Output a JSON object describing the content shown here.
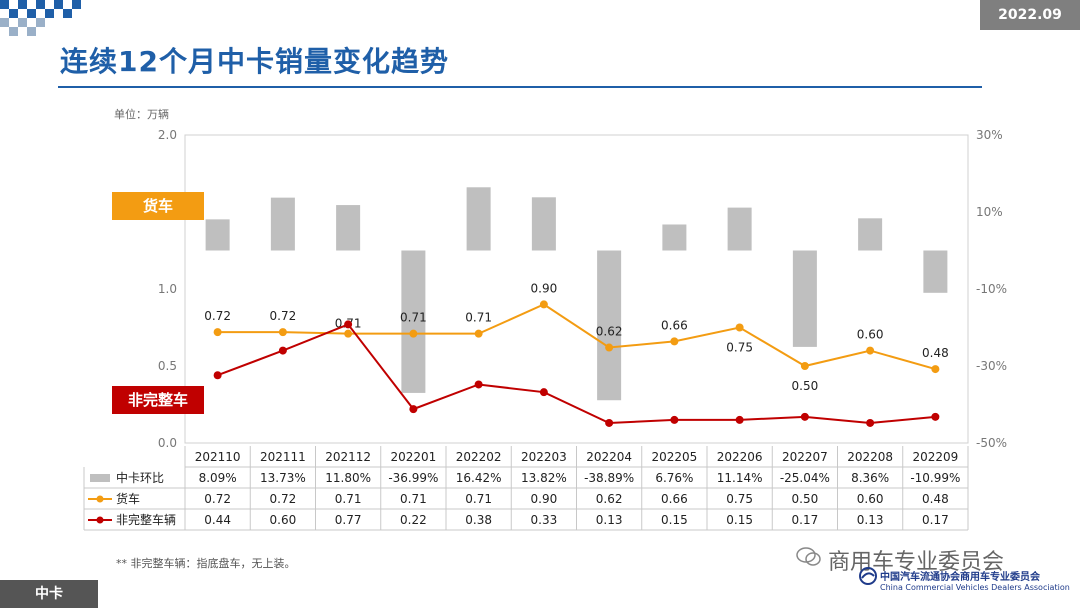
{
  "header": {
    "date": "2022.09",
    "title": "连续12个月中卡销量变化趋势"
  },
  "unit": "单位：万辆",
  "tags": {
    "truck": "货车",
    "chassis": "非完整车"
  },
  "footnote": "** 非完整车辆：指底盘车，无上装。",
  "footer": {
    "section": "中卡",
    "association": "商用车专业委员会",
    "association_cn": "中国汽车流通协会商用车专业委员会",
    "association_en": "China Commercial Vehicles Dealers Association"
  },
  "colors": {
    "bar": "#bfbfbf",
    "truck": "#f39c12",
    "chassis": "#c00000",
    "title": "#1f5fa8"
  },
  "chart_data": {
    "type": "bar+line",
    "categories": [
      "202110",
      "202111",
      "202112",
      "202201",
      "202202",
      "202203",
      "202204",
      "202205",
      "202206",
      "202207",
      "202208",
      "202209"
    ],
    "y_left": {
      "ticks": [
        "0.0",
        "0.5",
        "1.0",
        "2.0"
      ],
      "range": [
        0,
        2.0
      ]
    },
    "y_right": {
      "ticks": [
        "30%",
        "10%",
        "-10%",
        "-30%",
        "-50%"
      ],
      "range": [
        -0.5,
        0.3
      ]
    },
    "series": [
      {
        "name": "中卡环比",
        "type": "bar",
        "axis": "right",
        "values": [
          8.09,
          13.73,
          11.8,
          -36.99,
          16.42,
          13.82,
          -38.89,
          6.76,
          11.14,
          -25.04,
          8.36,
          -10.99
        ],
        "labels": [
          "8.09%",
          "13.73%",
          "11.80%",
          "-36.99%",
          "16.42%",
          "13.82%",
          "-38.89%",
          "6.76%",
          "11.14%",
          "-25.04%",
          "8.36%",
          "-10.99%"
        ]
      },
      {
        "name": "货车",
        "type": "line",
        "axis": "left",
        "values": [
          0.72,
          0.72,
          0.71,
          0.71,
          0.71,
          0.9,
          0.62,
          0.66,
          0.75,
          0.5,
          0.6,
          0.48
        ],
        "labels": [
          "0.72",
          "0.72",
          "0.71",
          "0.71",
          "0.71",
          "0.90",
          "0.62",
          "0.66",
          "0.75",
          "0.50",
          "0.60",
          "0.48"
        ]
      },
      {
        "name": "非完整车辆",
        "type": "line",
        "axis": "left",
        "values": [
          0.44,
          0.6,
          0.77,
          0.22,
          0.38,
          0.33,
          0.13,
          0.15,
          0.15,
          0.17,
          0.13,
          0.17
        ],
        "labels": [
          "0.44",
          "0.60",
          "0.77",
          "0.22",
          "0.38",
          "0.33",
          "0.13",
          "0.15",
          "0.15",
          "0.17",
          "0.13",
          "0.17"
        ]
      }
    ]
  }
}
